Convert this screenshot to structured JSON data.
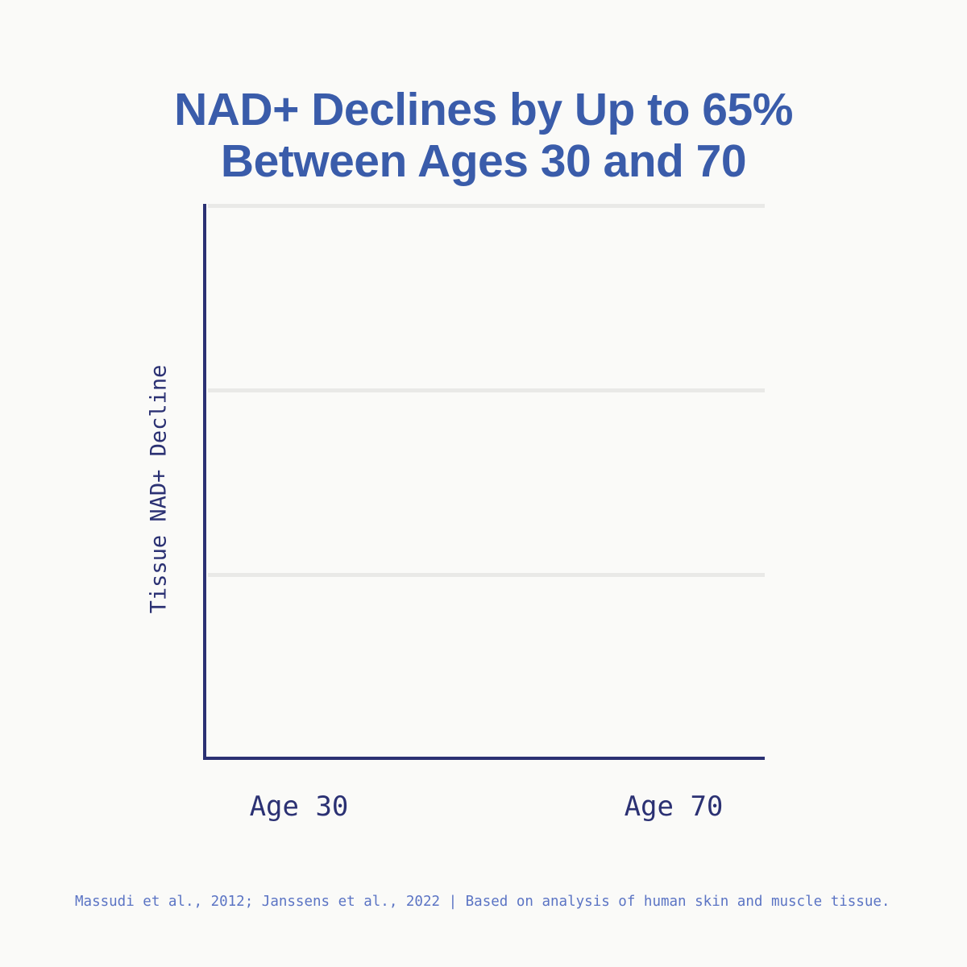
{
  "title": {
    "line1": "NAD+ Declines by Up to 65%",
    "line2": "Between Ages 30 and 70"
  },
  "chart_data": {
    "type": "bar",
    "title": "NAD+ Declines by Up to 65% Between Ages 30 and 70",
    "categories": [
      "Age 30",
      "Age 70"
    ],
    "series": [],
    "values_shown": false,
    "note": "Plot area is empty in this frame (animation start state) — axes and gridlines only, no bars or numeric values rendered",
    "xlabel": "",
    "ylabel": "Tissue NAD+ Decline",
    "grid": "horizontal",
    "gridline_positions_fraction_from_top": [
      0,
      0.333,
      0.667
    ],
    "legend": "none"
  },
  "footer": {
    "text": "Massudi et al., 2012; Janssens et al., 2022 | Based on analysis of human skin and muscle tissue."
  },
  "colors": {
    "background": "#fafaf8",
    "title-blue": "#3a5caa",
    "axis-navy": "#2b3173",
    "footer-blue": "#5b74c4",
    "gridline-gray": "#e9e9e7"
  }
}
